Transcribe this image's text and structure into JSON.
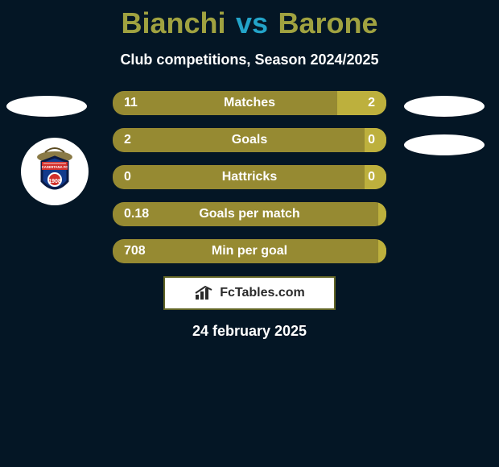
{
  "title": {
    "left": "Bianchi",
    "vs": "vs",
    "right": "Barone",
    "left_color": "#a0a240",
    "vs_color": "#23a4c9",
    "right_color": "#a0a240"
  },
  "subtitle": "Club competitions, Season 2024/2025",
  "background_color": "#041625",
  "bars": {
    "left_color": "#968a32",
    "label_color": "#ffffff",
    "rows": [
      {
        "label": "Matches",
        "left": "11",
        "right": "2",
        "right_color": "#bdb03d",
        "right_pct": 18
      },
      {
        "label": "Goals",
        "left": "2",
        "right": "0",
        "right_color": "#bdb03d",
        "right_pct": 8
      },
      {
        "label": "Hattricks",
        "left": "0",
        "right": "0",
        "right_color": "#bdb03d",
        "right_pct": 8
      },
      {
        "label": "Goals per match",
        "left": "0.18",
        "right": "",
        "right_color": "#bdb03d",
        "right_pct": 3
      },
      {
        "label": "Min per goal",
        "left": "708",
        "right": "",
        "right_color": "#bdb03d",
        "right_pct": 3
      }
    ]
  },
  "footer_brand": "FcTables.com",
  "date": "24 february 2025",
  "side_avatars": {
    "ellipse_color": "#ffffff",
    "club_badge_bg": "#ffffff"
  }
}
